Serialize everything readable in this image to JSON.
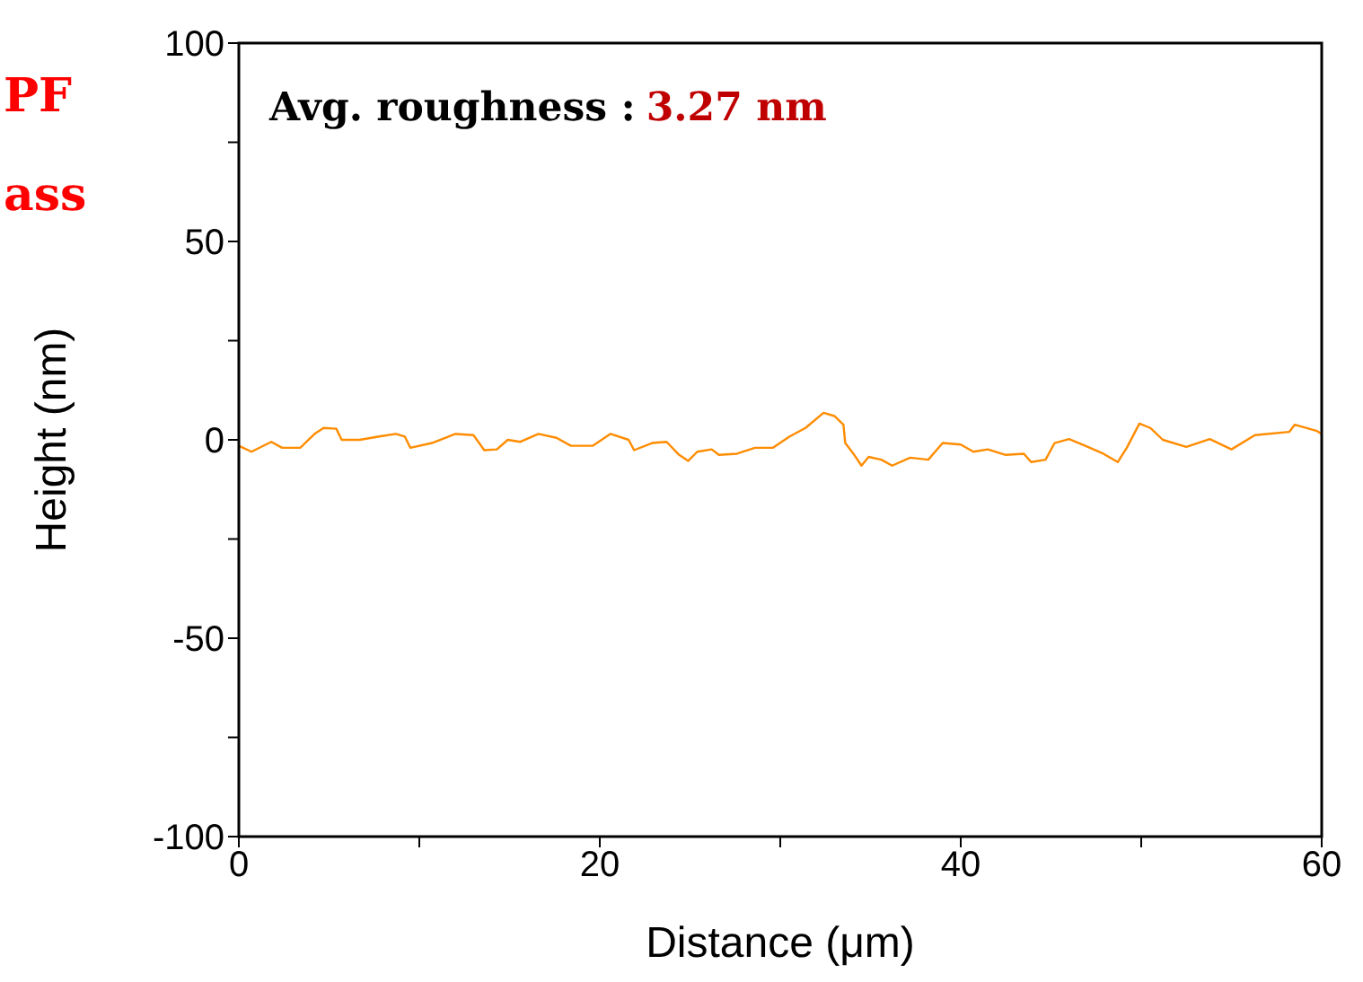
{
  "chart_data": {
    "type": "line",
    "xlabel": "Distance (μm)",
    "ylabel": "Height (nm)",
    "annotations": [
      "Avg. roughness :",
      "3.27 nm",
      "PF",
      "ass"
    ],
    "xlim": [
      0,
      60
    ],
    "xticks": [
      0,
      {
        "value": 10,
        "label": null
      },
      20,
      {
        "value": 30,
        "label": null
      },
      40,
      {
        "value": 50,
        "label": null
      },
      60
    ],
    "ylim": [
      -100,
      100
    ],
    "yticks": [
      -100,
      {
        "value": -75,
        "label": null
      },
      -50,
      {
        "value": -25,
        "label": null
      },
      0,
      {
        "value": 25,
        "label": null
      },
      50,
      {
        "value": 75,
        "label": null
      },
      100
    ],
    "grid": false,
    "marker": "none",
    "line_style": "solid",
    "series": [
      {
        "color": "#ff8c00",
        "x": [
          0,
          0.7,
          1.8,
          2.4,
          3.4,
          4.2,
          4.7,
          5.4,
          5.7,
          6.7,
          7.7,
          8.7,
          9.2,
          9.5,
          10.7,
          12.0,
          13.0,
          13.6,
          14.3,
          14.9,
          15.6,
          16.6,
          17.6,
          18.4,
          19.6,
          20.6,
          21.6,
          21.9,
          22.9,
          23.7,
          24.4,
          24.9,
          25.4,
          26.2,
          26.6,
          27.6,
          28.6,
          29.6,
          30.5,
          31.4,
          32.4,
          33.0,
          33.5,
          33.6,
          34.1,
          34.5,
          34.9,
          35.6,
          36.2,
          37.2,
          38.2,
          39.0,
          40.0,
          40.7,
          41.5,
          42.5,
          43.5,
          43.9,
          44.7,
          45.2,
          46.0,
          46.9,
          47.9,
          48.7,
          49.2,
          49.9,
          50.5,
          51.2,
          52.5,
          53.8,
          55.0,
          56.3,
          58.2,
          58.5,
          59.7,
          60
        ],
        "values": [
          -1.5,
          -3.0,
          -0.5,
          -2.0,
          -2.0,
          1.5,
          3.0,
          2.8,
          0,
          0,
          0.8,
          1.5,
          0.8,
          -2.0,
          -0.8,
          1.5,
          1.2,
          -2.6,
          -2.4,
          0,
          -0.5,
          1.5,
          0.5,
          -1.5,
          -1.5,
          1.5,
          0,
          -2.6,
          -0.8,
          -0.5,
          -3.8,
          -5.3,
          -3.0,
          -2.4,
          -3.8,
          -3.5,
          -2.0,
          -2.0,
          0.8,
          3.0,
          6.8,
          6.0,
          3.8,
          -0.8,
          -3.8,
          -6.5,
          -4.3,
          -5.0,
          -6.5,
          -4.5,
          -5.0,
          -0.8,
          -1.2,
          -3.0,
          -2.4,
          -3.8,
          -3.5,
          -5.6,
          -5.0,
          -0.8,
          0.2,
          -1.5,
          -3.5,
          -5.6,
          -2.0,
          4.1,
          3.0,
          0,
          -1.8,
          0.2,
          -2.4,
          1.2,
          2.0,
          3.8,
          2.3,
          1.5
        ]
      }
    ]
  }
}
